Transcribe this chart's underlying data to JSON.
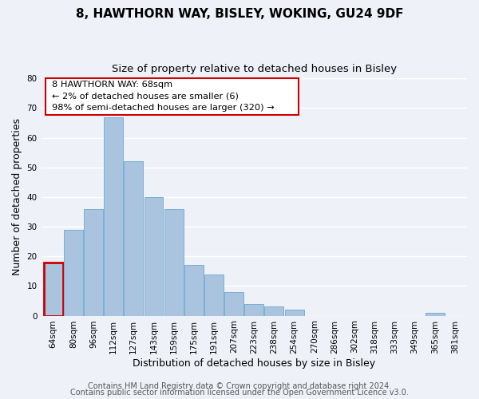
{
  "title": "8, HAWTHORN WAY, BISLEY, WOKING, GU24 9DF",
  "subtitle": "Size of property relative to detached houses in Bisley",
  "xlabel": "Distribution of detached houses by size in Bisley",
  "ylabel": "Number of detached properties",
  "footer_line1": "Contains HM Land Registry data © Crown copyright and database right 2024.",
  "footer_line2": "Contains public sector information licensed under the Open Government Licence v3.0.",
  "categories": [
    "64sqm",
    "80sqm",
    "96sqm",
    "112sqm",
    "127sqm",
    "143sqm",
    "159sqm",
    "175sqm",
    "191sqm",
    "207sqm",
    "223sqm",
    "238sqm",
    "254sqm",
    "270sqm",
    "286sqm",
    "302sqm",
    "318sqm",
    "333sqm",
    "349sqm",
    "365sqm",
    "381sqm"
  ],
  "values": [
    18,
    29,
    36,
    67,
    52,
    40,
    36,
    17,
    14,
    8,
    4,
    3,
    2,
    0,
    0,
    0,
    0,
    0,
    0,
    1,
    0
  ],
  "bar_color": "#aac4e0",
  "bar_edge_color": "#7aafd4",
  "highlight_bar_index": 0,
  "highlight_edge_color": "#cc0000",
  "annotation_line1": "8 HAWTHORN WAY: 68sqm",
  "annotation_line2": "← 2% of detached houses are smaller (6)",
  "annotation_line3": "98% of semi-detached houses are larger (320) →",
  "annotation_box_edgecolor": "#cc0000",
  "ylim": [
    0,
    80
  ],
  "yticks": [
    0,
    10,
    20,
    30,
    40,
    50,
    60,
    70,
    80
  ],
  "background_color": "#eef2f8",
  "grid_color": "#ffffff",
  "title_fontsize": 11,
  "subtitle_fontsize": 9.5,
  "axis_label_fontsize": 9,
  "tick_fontsize": 7.5,
  "footer_fontsize": 7
}
